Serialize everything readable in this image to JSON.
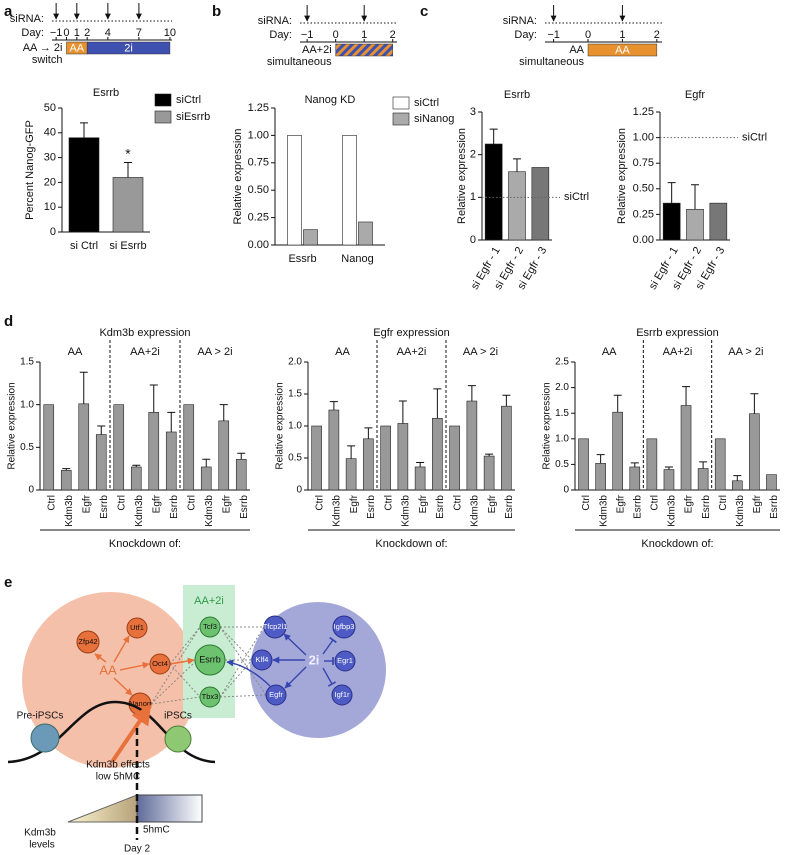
{
  "panel_labels": [
    "a",
    "b",
    "c",
    "d",
    "e"
  ],
  "timelines": [
    {
      "sirna_label": "siRNA:",
      "day_label": "Day:",
      "xlim": [
        -1.4,
        10.2
      ],
      "days": [
        {
          "value": -1,
          "label": "−1"
        },
        0,
        1,
        2,
        4,
        7,
        10
      ],
      "sirna_days": [
        -1,
        1,
        4,
        7
      ],
      "segments": [
        {
          "label": "AA",
          "from": 0,
          "to": 2,
          "color": "#e8912f"
        },
        {
          "label": "2i",
          "from": 2,
          "to": 10,
          "color": "#3f51b0"
        }
      ],
      "condition": [
        "AA → 2i",
        "switch"
      ]
    },
    {
      "sirna_label": "siRNA:",
      "day_label": "Day:",
      "xlim": [
        -1.25,
        2.15
      ],
      "days": [
        {
          "value": -1,
          "label": "−1"
        },
        0,
        1,
        2
      ],
      "sirna_days": [
        -1,
        1
      ],
      "segments": [
        {
          "from": 0,
          "to": 2,
          "colors": [
            "#e8912f",
            "#3f51b0"
          ]
        }
      ],
      "condition": [
        "AA+2i",
        "simultaneous"
      ]
    },
    {
      "sirna_label": "siRNA:",
      "day_label": "Day:",
      "xlim": [
        -1.25,
        2.15
      ],
      "days": [
        {
          "value": -1,
          "label": "−1"
        },
        0,
        1,
        2
      ],
      "sirna_days": [
        -1,
        1
      ],
      "segments": [
        {
          "label": "AA",
          "from": 0,
          "to": 2,
          "color": "#e8912f"
        }
      ],
      "condition": [
        "AA",
        "simultaneous"
      ]
    }
  ],
  "chart_data": [
    {
      "type": "bar",
      "title": "Esrrb",
      "ylabel": "Percent Nanog-GFP",
      "categories": [
        "si Ctrl",
        "si Esrrb"
      ],
      "values": [
        38,
        22
      ],
      "errors": [
        6,
        6
      ],
      "colors": [
        "#000000",
        "#999999"
      ],
      "legend": [
        "siCtrl",
        "siEsrrb"
      ],
      "annotations": [
        null,
        "*"
      ],
      "ylim": [
        0,
        50
      ],
      "yticks": [
        0,
        10,
        20,
        30,
        40,
        50
      ]
    },
    {
      "type": "grouped_bar",
      "title": "Nanog KD",
      "ylabel": "Relative expression",
      "categories": [
        "Essrb",
        "Nanog"
      ],
      "series": [
        {
          "name": "siCtrl",
          "color": "#ffffff",
          "values": [
            1.0,
            1.0
          ]
        },
        {
          "name": "siNanog",
          "color": "#aaaaaa",
          "values": [
            0.14,
            0.21
          ]
        }
      ],
      "ylim": [
        0,
        1.25
      ],
      "yticks": [
        {
          "value": 0,
          "label": "0.00"
        },
        0.25,
        {
          "value": 0.5,
          "label": "0.50"
        },
        0.75,
        {
          "value": 1,
          "label": "1.00"
        },
        1.25
      ]
    },
    {
      "type": "bar",
      "title": "Esrrb",
      "ylabel": "Relative expression",
      "categories": [
        "si Egfr - 1",
        "si Egfr - 2",
        "si Egfr - 3"
      ],
      "values": [
        2.25,
        1.6,
        1.7
      ],
      "errors": [
        0.35,
        0.3,
        null
      ],
      "colors": [
        "#000000",
        "#aaaaaa",
        "#777777"
      ],
      "reference": {
        "value": 1,
        "label": "siCtrl"
      },
      "ylim": [
        0,
        3
      ],
      "yticks": [
        0,
        1,
        2,
        3
      ]
    },
    {
      "type": "bar",
      "title": "Egfr",
      "ylabel": "Relative expression",
      "categories": [
        "si Egfr - 1",
        "si Egfr - 2",
        "si Egfr - 3"
      ],
      "values": [
        0.36,
        0.3,
        0.36
      ],
      "errors": [
        0.2,
        0.24,
        null
      ],
      "colors": [
        "#000000",
        "#aaaaaa",
        "#777777"
      ],
      "reference": {
        "value": 1,
        "label": "siCtrl"
      },
      "ylim": [
        0,
        1.25
      ],
      "yticks": [
        {
          "value": 0,
          "label": "0.00"
        },
        0.25,
        {
          "value": 0.5,
          "label": "0.50"
        },
        0.75,
        {
          "value": 1,
          "label": "1.00"
        },
        1.25
      ]
    },
    {
      "type": "panel_bar",
      "title": "Kdm3b expression",
      "ylabel": "Relative expression",
      "xlabel": "Knockdown of:",
      "categories": [
        "Ctrl",
        "Kdm3b",
        "Egfr",
        "Esrrb"
      ],
      "series": [
        {
          "name": "AA",
          "color": "#999999",
          "values": [
            1.0,
            0.23,
            1.01,
            0.65
          ],
          "errors": [
            null,
            0.02,
            0.37,
            0.1
          ]
        },
        {
          "name": "AA+2i",
          "color": "#999999",
          "values": [
            1.0,
            0.27,
            0.91,
            0.68
          ],
          "errors": [
            null,
            0.02,
            0.32,
            0.23
          ]
        },
        {
          "name": "AA > 2i",
          "color": "#999999",
          "values": [
            1.0,
            0.27,
            0.81,
            0.36
          ],
          "errors": [
            null,
            0.09,
            0.19,
            0.07
          ]
        }
      ],
      "ylim": [
        0,
        1.5
      ],
      "yticks": [
        0,
        0.5,
        {
          "value": 1,
          "label": "1.0"
        },
        1.5
      ]
    },
    {
      "type": "panel_bar",
      "title": "Egfr expression",
      "ylabel": "Relative expression",
      "xlabel": "Knockdown of:",
      "categories": [
        "Ctrl",
        "Kdm3b",
        "Egfr",
        "Esrrb"
      ],
      "series": [
        {
          "name": "AA",
          "color": "#999999",
          "values": [
            1.0,
            1.25,
            0.49,
            0.8
          ],
          "errors": [
            null,
            0.13,
            0.2,
            0.17
          ]
        },
        {
          "name": "AA+2i",
          "color": "#999999",
          "values": [
            1.0,
            1.04,
            0.36,
            1.12
          ],
          "errors": [
            null,
            0.35,
            0.07,
            0.46
          ]
        },
        {
          "name": "AA > 2i",
          "color": "#999999",
          "values": [
            1.0,
            1.39,
            0.53,
            1.31
          ],
          "errors": [
            null,
            0.24,
            0.03,
            0.17
          ]
        }
      ],
      "ylim": [
        0,
        2
      ],
      "yticks": [
        0,
        0.5,
        {
          "value": 1,
          "label": "1.0"
        },
        1.5,
        {
          "value": 2,
          "label": "2.0"
        }
      ]
    },
    {
      "type": "panel_bar",
      "title": "Esrrb expression",
      "ylabel": "Relative expression",
      "xlabel": "Knockdown of:",
      "categories": [
        "Ctrl",
        "Kdm3b",
        "Egfr",
        "Esrrb"
      ],
      "series": [
        {
          "name": "AA",
          "color": "#999999",
          "values": [
            1.0,
            0.52,
            1.52,
            0.45
          ],
          "errors": [
            null,
            0.17,
            0.33,
            0.08
          ]
        },
        {
          "name": "AA+2i",
          "color": "#999999",
          "values": [
            1.0,
            0.4,
            1.65,
            0.42
          ],
          "errors": [
            null,
            0.05,
            0.37,
            0.13
          ]
        },
        {
          "name": "AA > 2i",
          "color": "#999999",
          "values": [
            1.0,
            0.18,
            1.49,
            0.3
          ],
          "errors": [
            null,
            0.1,
            0.39,
            null
          ]
        }
      ],
      "ylim": [
        0,
        2.5
      ],
      "yticks": [
        0,
        0.5,
        {
          "value": 1,
          "label": "1.0"
        },
        1.5,
        {
          "value": 2,
          "label": "2.0"
        },
        2.5
      ]
    }
  ],
  "diagram": {
    "overlap": "AA+2i",
    "aa": "AA",
    "two_i": "2i",
    "aa_nodes": [
      "Zfp42",
      "Utf1",
      "Oct4",
      "Nanog"
    ],
    "core_nodes": [
      "Tcf3",
      "Esrrb",
      "Tbx3"
    ],
    "two_i_nodes": [
      "Tfcp2l1",
      "Igfbp3",
      "Klf4",
      "Egr1",
      "Egfr",
      "Igf1r"
    ],
    "stages": [
      "Pre-iPSCs",
      "iPSCs"
    ],
    "effect": [
      "Kdm3b effects",
      "low 5hMC"
    ],
    "levels": [
      "Kdm3b",
      "levels"
    ],
    "mark": "5hmC",
    "day": "Day 2"
  }
}
